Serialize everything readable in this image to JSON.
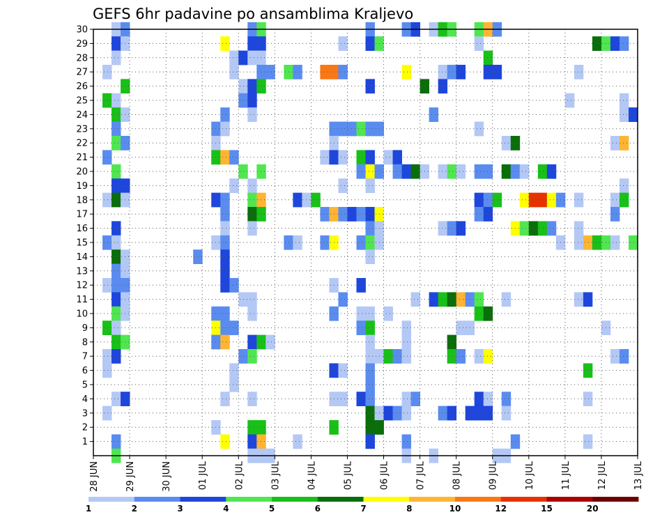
{
  "chart_data": {
    "type": "heatmap",
    "title": "GEFS 6hr padavine po ansamblima Kraljevo",
    "xlabel": "",
    "ylabel": "",
    "x_tick_labels": [
      "28 JUN",
      "29 JUN",
      "30 JUN",
      "01 JUL",
      "02 JUL",
      "03 JUL",
      "04 JUL",
      "05 JUL",
      "06 JUL",
      "07 JUL",
      "08 JUL",
      "09 JUL",
      "10 JUL",
      "11 JUL",
      "12 JUL",
      "13 JUL"
    ],
    "y_tick_labels": [
      "1",
      "2",
      "3",
      "4",
      "5",
      "6",
      "7",
      "8",
      "9",
      "10",
      "11",
      "12",
      "13",
      "14",
      "15",
      "16",
      "17",
      "18",
      "19",
      "20",
      "21",
      "22",
      "23",
      "24",
      "25",
      "26",
      "27",
      "28",
      "29",
      "30"
    ],
    "x_range_steps": [
      0,
      60
    ],
    "y_range": [
      0,
      30
    ],
    "grid": true,
    "colorbar": {
      "ticks": [
        "1",
        "2",
        "3",
        "4",
        "5",
        "6",
        "7",
        "8",
        "10",
        "12",
        "15",
        "20"
      ],
      "colors": [
        "#b4c8f5",
        "#5a8cf0",
        "#1e46dc",
        "#50e650",
        "#18c018",
        "#0a6e0a",
        "#ffff00",
        "#ffb432",
        "#fa7814",
        "#e63200",
        "#aa0000",
        "#6e0000"
      ]
    },
    "cells_note": "each cell: [member(1-30), time_step(0-59, 6h steps from 28 JUN 00z), color_class_index]",
    "cells": [
      [
        30,
        2,
        0
      ],
      [
        30,
        3,
        1
      ],
      [
        30,
        17,
        1
      ],
      [
        30,
        18,
        3
      ],
      [
        30,
        30,
        1
      ],
      [
        30,
        34,
        1
      ],
      [
        30,
        35,
        2
      ],
      [
        30,
        37,
        0
      ],
      [
        30,
        38,
        4
      ],
      [
        30,
        39,
        3
      ],
      [
        30,
        42,
        3
      ],
      [
        30,
        43,
        7
      ],
      [
        30,
        44,
        1
      ],
      [
        29,
        2,
        2
      ],
      [
        29,
        3,
        0
      ],
      [
        29,
        14,
        6
      ],
      [
        29,
        17,
        2
      ],
      [
        29,
        18,
        2
      ],
      [
        29,
        27,
        0
      ],
      [
        29,
        30,
        2
      ],
      [
        29,
        31,
        3
      ],
      [
        29,
        42,
        0
      ],
      [
        29,
        55,
        5
      ],
      [
        29,
        56,
        3
      ],
      [
        29,
        57,
        2
      ],
      [
        29,
        58,
        1
      ],
      [
        28,
        2,
        0
      ],
      [
        28,
        15,
        0
      ],
      [
        28,
        16,
        2
      ],
      [
        28,
        17,
        0
      ],
      [
        28,
        18,
        0
      ],
      [
        28,
        43,
        4
      ],
      [
        27,
        1,
        0
      ],
      [
        27,
        15,
        0
      ],
      [
        27,
        18,
        1
      ],
      [
        27,
        19,
        1
      ],
      [
        27,
        21,
        3
      ],
      [
        27,
        22,
        1
      ],
      [
        27,
        25,
        8
      ],
      [
        27,
        26,
        8
      ],
      [
        27,
        27,
        1
      ],
      [
        27,
        34,
        6
      ],
      [
        27,
        38,
        0
      ],
      [
        27,
        39,
        1
      ],
      [
        27,
        40,
        2
      ],
      [
        27,
        43,
        2
      ],
      [
        27,
        44,
        2
      ],
      [
        27,
        53,
        0
      ],
      [
        26,
        3,
        4
      ],
      [
        26,
        16,
        0
      ],
      [
        26,
        17,
        2
      ],
      [
        26,
        18,
        4
      ],
      [
        26,
        30,
        2
      ],
      [
        26,
        36,
        5
      ],
      [
        26,
        38,
        2
      ],
      [
        25,
        1,
        4
      ],
      [
        25,
        2,
        0
      ],
      [
        25,
        16,
        1
      ],
      [
        25,
        17,
        2
      ],
      [
        25,
        52,
        0
      ],
      [
        25,
        58,
        0
      ],
      [
        24,
        2,
        4
      ],
      [
        24,
        3,
        0
      ],
      [
        24,
        14,
        1
      ],
      [
        24,
        17,
        0
      ],
      [
        24,
        37,
        1
      ],
      [
        24,
        58,
        0
      ],
      [
        24,
        59,
        2
      ],
      [
        23,
        2,
        1
      ],
      [
        23,
        13,
        1
      ],
      [
        23,
        14,
        0
      ],
      [
        23,
        26,
        1
      ],
      [
        23,
        27,
        1
      ],
      [
        23,
        28,
        1
      ],
      [
        23,
        29,
        3
      ],
      [
        23,
        30,
        1
      ],
      [
        23,
        31,
        1
      ],
      [
        23,
        42,
        0
      ],
      [
        22,
        2,
        3
      ],
      [
        22,
        3,
        1
      ],
      [
        22,
        13,
        0
      ],
      [
        22,
        26,
        0
      ],
      [
        22,
        45,
        0
      ],
      [
        22,
        46,
        5
      ],
      [
        22,
        57,
        0
      ],
      [
        22,
        58,
        7
      ],
      [
        21,
        1,
        1
      ],
      [
        21,
        13,
        4
      ],
      [
        21,
        14,
        7
      ],
      [
        21,
        15,
        1
      ],
      [
        21,
        25,
        0
      ],
      [
        21,
        26,
        2
      ],
      [
        21,
        27,
        0
      ],
      [
        21,
        29,
        4
      ],
      [
        21,
        30,
        2
      ],
      [
        21,
        32,
        0
      ],
      [
        21,
        33,
        2
      ],
      [
        20,
        2,
        3
      ],
      [
        20,
        16,
        3
      ],
      [
        20,
        18,
        3
      ],
      [
        20,
        29,
        1
      ],
      [
        20,
        30,
        6
      ],
      [
        20,
        31,
        1
      ],
      [
        20,
        33,
        1
      ],
      [
        20,
        34,
        2
      ],
      [
        20,
        35,
        5
      ],
      [
        20,
        36,
        0
      ],
      [
        20,
        38,
        0
      ],
      [
        20,
        39,
        3
      ],
      [
        20,
        40,
        0
      ],
      [
        20,
        42,
        1
      ],
      [
        20,
        43,
        1
      ],
      [
        20,
        45,
        5
      ],
      [
        20,
        46,
        1
      ],
      [
        20,
        47,
        0
      ],
      [
        20,
        49,
        4
      ],
      [
        20,
        50,
        2
      ],
      [
        19,
        2,
        2
      ],
      [
        19,
        3,
        2
      ],
      [
        19,
        15,
        0
      ],
      [
        19,
        17,
        0
      ],
      [
        19,
        27,
        0
      ],
      [
        19,
        30,
        0
      ],
      [
        19,
        58,
        0
      ],
      [
        18,
        1,
        0
      ],
      [
        18,
        2,
        5
      ],
      [
        18,
        3,
        0
      ],
      [
        18,
        13,
        2
      ],
      [
        18,
        14,
        1
      ],
      [
        18,
        17,
        3
      ],
      [
        18,
        18,
        7
      ],
      [
        18,
        22,
        2
      ],
      [
        18,
        23,
        0
      ],
      [
        18,
        24,
        4
      ],
      [
        18,
        42,
        2
      ],
      [
        18,
        43,
        1
      ],
      [
        18,
        44,
        4
      ],
      [
        18,
        47,
        6
      ],
      [
        18,
        48,
        9
      ],
      [
        18,
        49,
        9
      ],
      [
        18,
        50,
        6
      ],
      [
        18,
        51,
        1
      ],
      [
        18,
        53,
        0
      ],
      [
        18,
        57,
        0
      ],
      [
        18,
        58,
        4
      ],
      [
        17,
        14,
        1
      ],
      [
        17,
        17,
        5
      ],
      [
        17,
        18,
        4
      ],
      [
        17,
        25,
        1
      ],
      [
        17,
        26,
        7
      ],
      [
        17,
        27,
        1
      ],
      [
        17,
        28,
        2
      ],
      [
        17,
        29,
        1
      ],
      [
        17,
        30,
        2
      ],
      [
        17,
        31,
        6
      ],
      [
        17,
        42,
        1
      ],
      [
        17,
        43,
        2
      ],
      [
        17,
        57,
        1
      ],
      [
        16,
        2,
        2
      ],
      [
        16,
        14,
        0
      ],
      [
        16,
        17,
        0
      ],
      [
        16,
        30,
        1
      ],
      [
        16,
        31,
        0
      ],
      [
        16,
        38,
        0
      ],
      [
        16,
        39,
        1
      ],
      [
        16,
        40,
        2
      ],
      [
        16,
        46,
        6
      ],
      [
        16,
        47,
        3
      ],
      [
        16,
        48,
        5
      ],
      [
        16,
        49,
        4
      ],
      [
        16,
        50,
        1
      ],
      [
        16,
        53,
        0
      ],
      [
        15,
        1,
        1
      ],
      [
        15,
        2,
        0
      ],
      [
        15,
        13,
        0
      ],
      [
        15,
        14,
        1
      ],
      [
        15,
        21,
        1
      ],
      [
        15,
        22,
        0
      ],
      [
        15,
        25,
        1
      ],
      [
        15,
        26,
        6
      ],
      [
        15,
        29,
        1
      ],
      [
        15,
        30,
        3
      ],
      [
        15,
        31,
        0
      ],
      [
        15,
        51,
        0
      ],
      [
        15,
        53,
        0
      ],
      [
        15,
        54,
        7
      ],
      [
        15,
        55,
        4
      ],
      [
        15,
        56,
        3
      ],
      [
        15,
        57,
        0
      ],
      [
        15,
        59,
        3
      ],
      [
        14,
        2,
        5
      ],
      [
        14,
        3,
        0
      ],
      [
        14,
        11,
        1
      ],
      [
        14,
        14,
        2
      ],
      [
        14,
        30,
        0
      ],
      [
        13,
        2,
        1
      ],
      [
        13,
        3,
        0
      ],
      [
        13,
        14,
        2
      ],
      [
        12,
        1,
        0
      ],
      [
        12,
        2,
        1
      ],
      [
        12,
        3,
        1
      ],
      [
        12,
        14,
        2
      ],
      [
        12,
        15,
        1
      ],
      [
        12,
        26,
        0
      ],
      [
        12,
        29,
        2
      ],
      [
        11,
        2,
        2
      ],
      [
        11,
        3,
        0
      ],
      [
        11,
        16,
        0
      ],
      [
        11,
        17,
        0
      ],
      [
        11,
        27,
        1
      ],
      [
        11,
        35,
        0
      ],
      [
        11,
        37,
        2
      ],
      [
        11,
        38,
        4
      ],
      [
        11,
        39,
        5
      ],
      [
        11,
        40,
        7
      ],
      [
        11,
        41,
        1
      ],
      [
        11,
        42,
        3
      ],
      [
        11,
        45,
        0
      ],
      [
        11,
        53,
        0
      ],
      [
        11,
        54,
        2
      ],
      [
        10,
        2,
        3
      ],
      [
        10,
        3,
        0
      ],
      [
        10,
        13,
        1
      ],
      [
        10,
        14,
        1
      ],
      [
        10,
        17,
        0
      ],
      [
        10,
        26,
        1
      ],
      [
        10,
        29,
        0
      ],
      [
        10,
        30,
        0
      ],
      [
        10,
        32,
        0
      ],
      [
        10,
        42,
        4
      ],
      [
        10,
        43,
        5
      ],
      [
        9,
        1,
        4
      ],
      [
        9,
        2,
        0
      ],
      [
        9,
        13,
        6
      ],
      [
        9,
        14,
        1
      ],
      [
        9,
        15,
        1
      ],
      [
        9,
        29,
        1
      ],
      [
        9,
        30,
        4
      ],
      [
        9,
        34,
        0
      ],
      [
        9,
        40,
        0
      ],
      [
        9,
        41,
        0
      ],
      [
        9,
        56,
        0
      ],
      [
        8,
        2,
        4
      ],
      [
        8,
        3,
        3
      ],
      [
        8,
        13,
        1
      ],
      [
        8,
        14,
        7
      ],
      [
        8,
        17,
        2
      ],
      [
        8,
        18,
        4
      ],
      [
        8,
        19,
        0
      ],
      [
        8,
        30,
        0
      ],
      [
        8,
        34,
        0
      ],
      [
        8,
        39,
        5
      ],
      [
        7,
        1,
        0
      ],
      [
        7,
        2,
        2
      ],
      [
        7,
        16,
        1
      ],
      [
        7,
        17,
        3
      ],
      [
        7,
        30,
        0
      ],
      [
        7,
        31,
        0
      ],
      [
        7,
        32,
        4
      ],
      [
        7,
        33,
        1
      ],
      [
        7,
        34,
        0
      ],
      [
        7,
        39,
        4
      ],
      [
        7,
        40,
        1
      ],
      [
        7,
        42,
        0
      ],
      [
        7,
        43,
        6
      ],
      [
        7,
        57,
        0
      ],
      [
        7,
        58,
        1
      ],
      [
        6,
        1,
        0
      ],
      [
        6,
        15,
        0
      ],
      [
        6,
        26,
        2
      ],
      [
        6,
        27,
        0
      ],
      [
        6,
        30,
        1
      ],
      [
        6,
        54,
        4
      ],
      [
        5,
        15,
        0
      ],
      [
        5,
        30,
        1
      ],
      [
        4,
        2,
        0
      ],
      [
        4,
        3,
        2
      ],
      [
        4,
        14,
        0
      ],
      [
        4,
        17,
        0
      ],
      [
        4,
        26,
        0
      ],
      [
        4,
        27,
        0
      ],
      [
        4,
        29,
        2
      ],
      [
        4,
        30,
        1
      ],
      [
        4,
        34,
        0
      ],
      [
        4,
        35,
        1
      ],
      [
        4,
        42,
        2
      ],
      [
        4,
        43,
        0
      ],
      [
        4,
        45,
        1
      ],
      [
        4,
        54,
        0
      ],
      [
        3,
        1,
        0
      ],
      [
        3,
        30,
        5
      ],
      [
        3,
        31,
        0
      ],
      [
        3,
        32,
        2
      ],
      [
        3,
        33,
        1
      ],
      [
        3,
        34,
        0
      ],
      [
        3,
        38,
        1
      ],
      [
        3,
        39,
        2
      ],
      [
        3,
        41,
        2
      ],
      [
        3,
        42,
        2
      ],
      [
        3,
        43,
        2
      ],
      [
        3,
        45,
        0
      ],
      [
        2,
        13,
        0
      ],
      [
        2,
        17,
        4
      ],
      [
        2,
        18,
        4
      ],
      [
        2,
        26,
        4
      ],
      [
        2,
        30,
        5
      ],
      [
        2,
        31,
        5
      ],
      [
        1,
        2,
        1
      ],
      [
        1,
        14,
        6
      ],
      [
        1,
        17,
        2
      ],
      [
        1,
        18,
        7
      ],
      [
        1,
        22,
        0
      ],
      [
        1,
        30,
        2
      ],
      [
        1,
        34,
        1
      ],
      [
        1,
        46,
        1
      ],
      [
        1,
        54,
        0
      ],
      [
        0,
        2,
        3
      ],
      [
        0,
        17,
        0
      ],
      [
        0,
        18,
        0
      ],
      [
        0,
        19,
        0
      ],
      [
        0,
        34,
        0
      ],
      [
        0,
        37,
        0
      ],
      [
        0,
        44,
        0
      ],
      [
        0,
        45,
        0
      ]
    ]
  }
}
